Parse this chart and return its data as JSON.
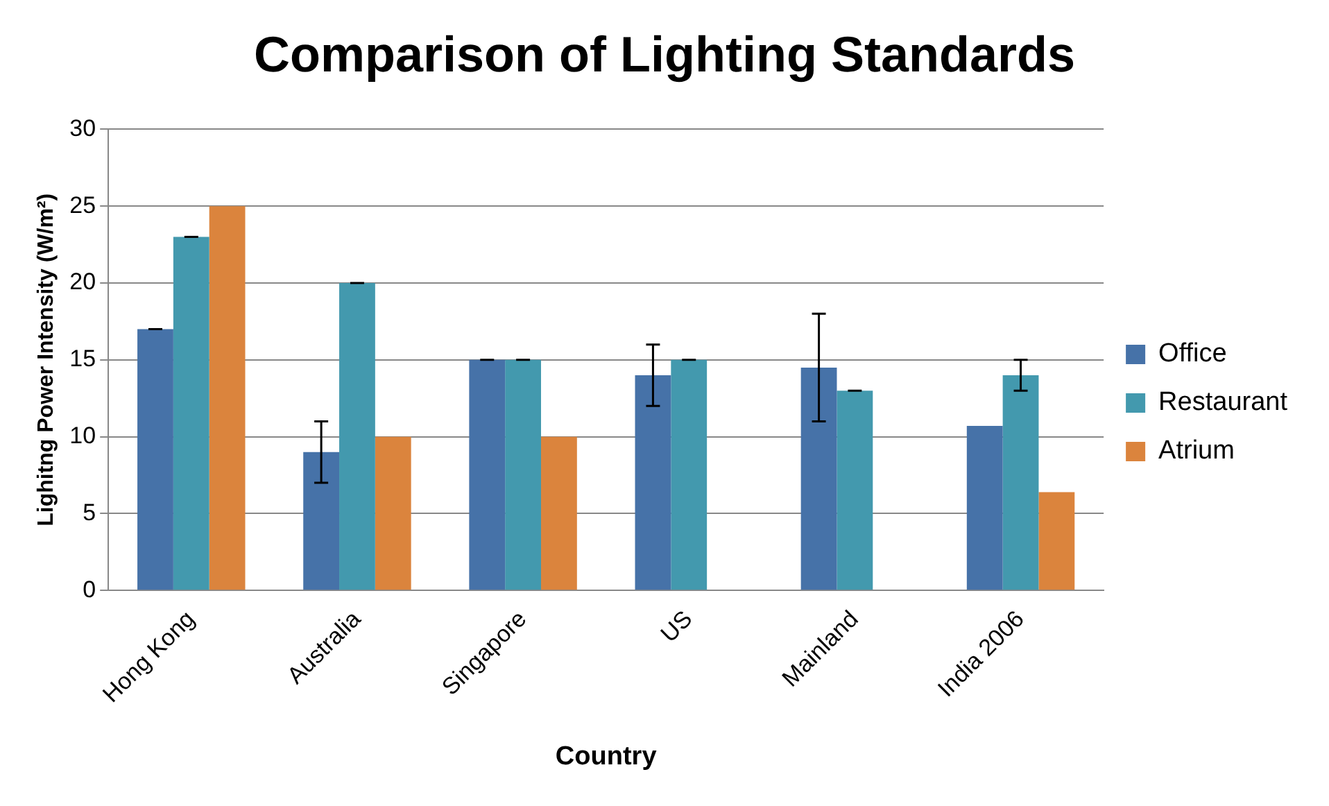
{
  "chart_data": {
    "type": "bar",
    "title": "Comparison of Lighting Standards",
    "xlabel": "Country",
    "ylabel": "Lighitng Power Intensity (W/m²)",
    "categories": [
      "Hong Kong",
      "Australia",
      "Singapore",
      "US",
      "Mainland",
      "India 2006"
    ],
    "series": [
      {
        "name": "Office",
        "color": "#4672a8",
        "values": [
          17,
          9,
          15,
          14,
          14.5,
          10.7
        ],
        "errors": [
          0,
          [
            7,
            11
          ],
          0,
          [
            12,
            16
          ],
          [
            11,
            18
          ],
          null
        ]
      },
      {
        "name": "Restaurant",
        "color": "#4399ae",
        "values": [
          23,
          20,
          15,
          15,
          13,
          14
        ],
        "errors": [
          0,
          0,
          0,
          0,
          0,
          [
            13,
            15
          ]
        ]
      },
      {
        "name": "Atrium",
        "color": "#db843d",
        "values": [
          25,
          10,
          10,
          null,
          null,
          6.4
        ]
      }
    ],
    "ylim": [
      0,
      30
    ],
    "yticks": [
      0,
      5,
      10,
      15,
      20,
      25,
      30
    ],
    "grid": "y",
    "legend": "right"
  }
}
